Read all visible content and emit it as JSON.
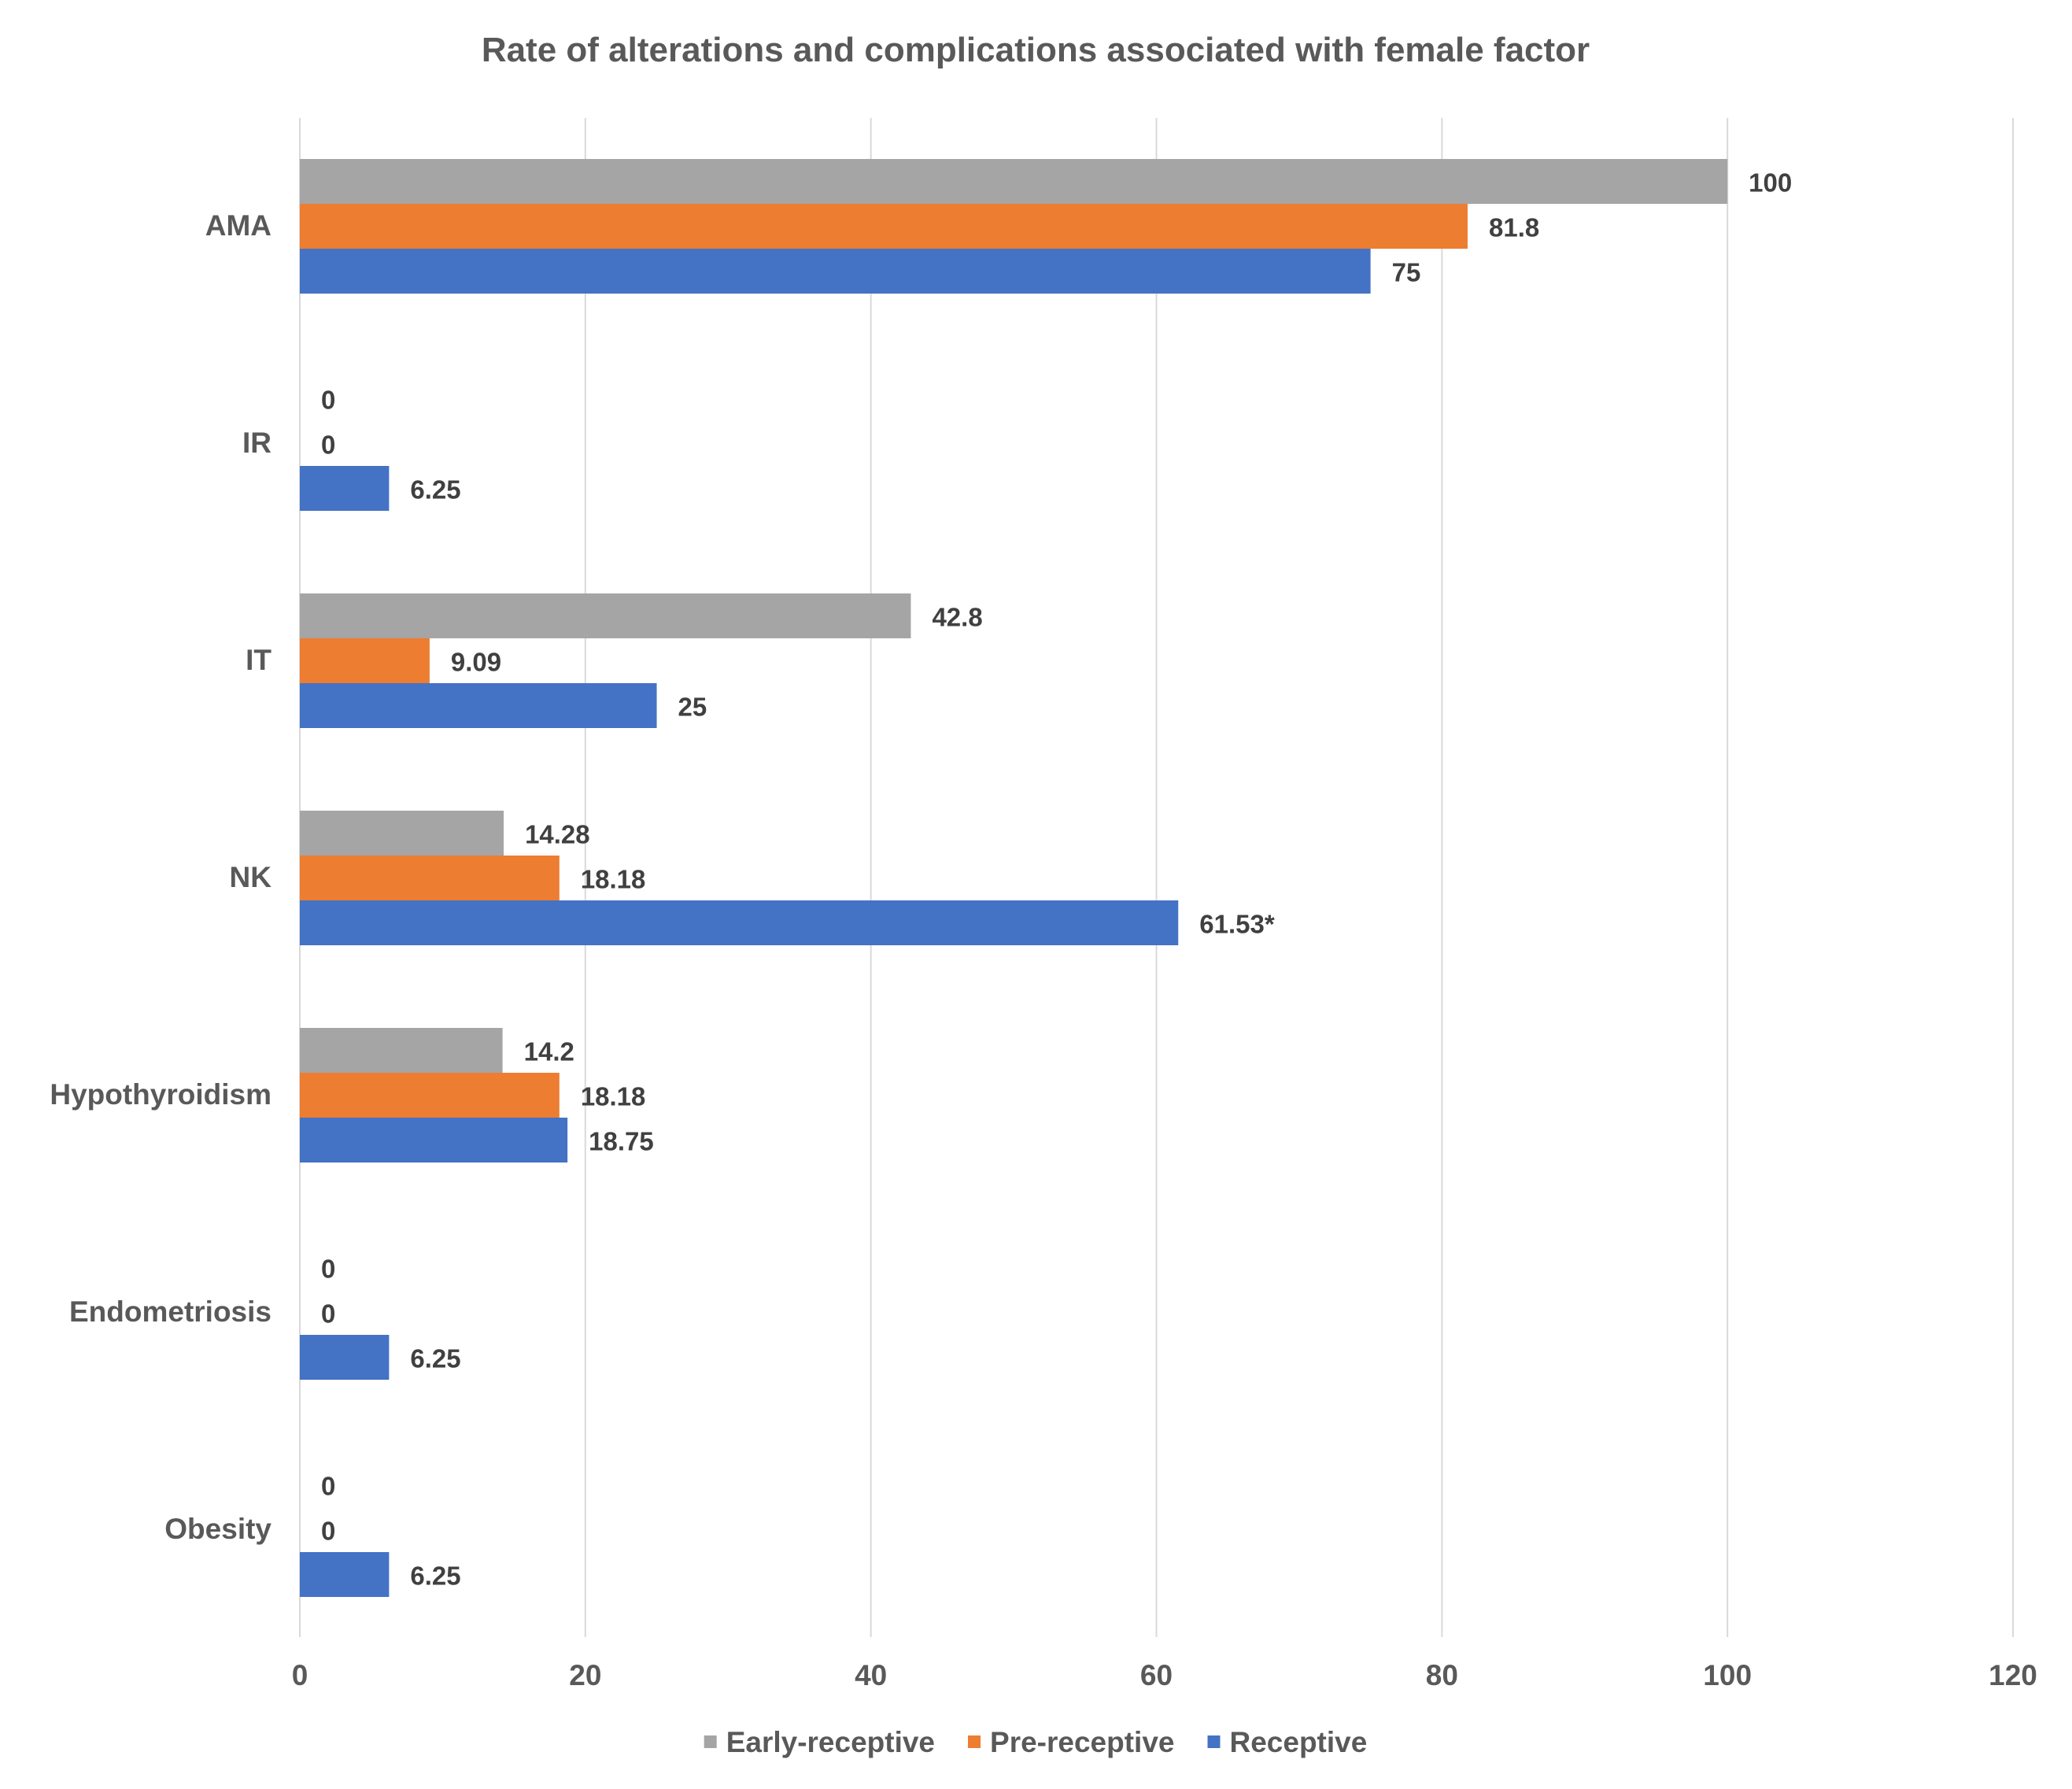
{
  "chart_data": {
    "type": "bar",
    "orientation": "horizontal",
    "title": "Rate of alterations and complications associated with female factor",
    "categories": [
      "AMA",
      "IR",
      "IT",
      "NK",
      "Hypothyroidism",
      "Endometriosis",
      "Obesity"
    ],
    "series": [
      {
        "name": "Early-receptive",
        "color": "#a5a5a5",
        "values": [
          100,
          0,
          42.8,
          14.28,
          14.2,
          0,
          0
        ],
        "labels": [
          "100",
          "0",
          "42.8",
          "14.28",
          "14.2",
          "0",
          "0"
        ]
      },
      {
        "name": "Pre-receptive",
        "color": "#ed7d31",
        "values": [
          81.8,
          0,
          9.09,
          18.18,
          18.18,
          0,
          0
        ],
        "labels": [
          "81.8",
          "0",
          "9.09",
          "18.18",
          "18.18",
          "0",
          "0"
        ]
      },
      {
        "name": "Receptive",
        "color": "#4472c4",
        "values": [
          75,
          6.25,
          25,
          61.53,
          18.75,
          6.25,
          6.25
        ],
        "labels": [
          "75",
          "6.25",
          "25",
          "61.53*",
          "18.75",
          "6.25",
          "6.25"
        ]
      }
    ],
    "xlim": [
      0,
      120
    ],
    "xticks": [
      0,
      20,
      40,
      60,
      80,
      100,
      120
    ],
    "xlabel": "",
    "ylabel": "",
    "grid": "vertical",
    "legend": "bottom"
  }
}
